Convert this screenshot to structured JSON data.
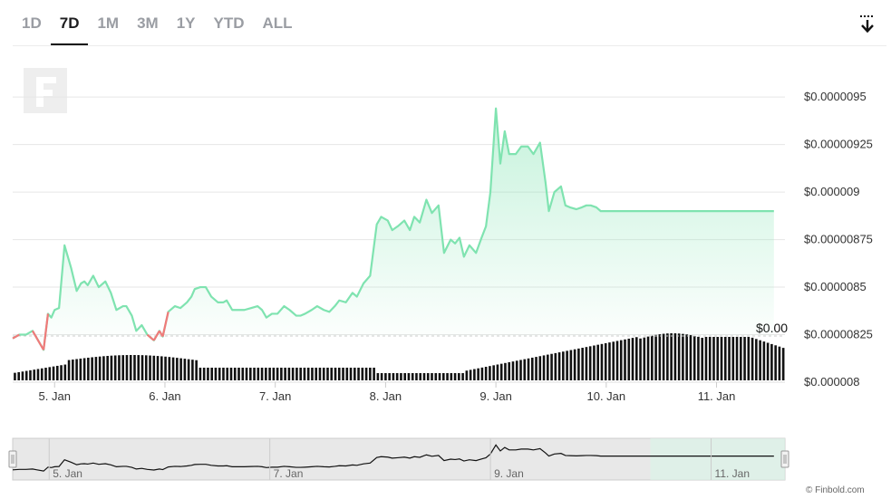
{
  "tabs": [
    "1D",
    "7D",
    "1M",
    "3M",
    "1Y",
    "YTD",
    "ALL"
  ],
  "active_tab": "7D",
  "credit": "© Finbold.com",
  "colors": {
    "line": "#7fe3b0",
    "below_baseline": "#f07a7a",
    "volume": "#111111",
    "grid": "#e6e6e6"
  },
  "icons": {
    "download": "download-icon",
    "watermark": "finbold-logo-icon"
  },
  "chart_data": {
    "type": "line",
    "x_labels": [
      "5. Jan",
      "6. Jan",
      "7. Jan",
      "8. Jan",
      "9. Jan",
      "10. Jan",
      "11. Jan"
    ],
    "y_ticks": [
      8e-06,
      8.25e-06,
      8.5e-06,
      8.75e-06,
      9e-06,
      9.25e-06,
      9.5e-06
    ],
    "y_tick_labels": [
      "$0.000008",
      "$0.00000825",
      "$0.0000085",
      "$0.00000875",
      "$0.000009",
      "$0.00000925",
      "$0.0000095"
    ],
    "ylim": [
      8e-06,
      9.5e-06
    ],
    "baseline_label": "$0.00",
    "series": [
      {
        "x": [
          4.62,
          4.68,
          4.74,
          4.8,
          4.84,
          4.9,
          4.94,
          4.97,
          5.0,
          5.04,
          5.09,
          5.15,
          5.2,
          5.24,
          5.27,
          5.3,
          5.35,
          5.4,
          5.46,
          5.51,
          5.56,
          5.62,
          5.65,
          5.7,
          5.74,
          5.79,
          5.84,
          5.9,
          5.95,
          5.98,
          6.03,
          6.09,
          6.14,
          6.2,
          6.24,
          6.27,
          6.32,
          6.37,
          6.42,
          6.48,
          6.53,
          6.56,
          6.61,
          6.67,
          6.72,
          6.78,
          6.84,
          6.88,
          6.92,
          6.97,
          7.02,
          7.08,
          7.13,
          7.19,
          7.23,
          7.27,
          7.33,
          7.38,
          7.44,
          7.49,
          7.54,
          7.58,
          7.64,
          7.7,
          7.74,
          7.8,
          7.86,
          7.92,
          7.96,
          8.02,
          8.06,
          8.11,
          8.17,
          8.22,
          8.26,
          8.31,
          8.37,
          8.42,
          8.48,
          8.53,
          8.59,
          8.63,
          8.67,
          8.71,
          8.76,
          8.82,
          8.87,
          8.91,
          8.95,
          9.0,
          9.04,
          9.08,
          9.12,
          9.18,
          9.23,
          9.29,
          9.34,
          9.4,
          9.45,
          9.48,
          9.53,
          9.59,
          9.63,
          9.67,
          9.73,
          9.78,
          9.82,
          9.86,
          9.91,
          9.95,
          9.99,
          10.04,
          10.1,
          10.15,
          10.19,
          10.25,
          10.29,
          10.34,
          10.38,
          10.42,
          10.46,
          10.5,
          10.55,
          10.6,
          10.64,
          10.69,
          10.74,
          10.79,
          10.84,
          10.9,
          10.95,
          11.01,
          11.06,
          11.11,
          11.15,
          11.19,
          11.24,
          11.29,
          11.33,
          11.38,
          11.41,
          11.46,
          11.52
        ],
        "values": [
          8.23e-06,
          8.25e-06,
          8.25e-06,
          8.27e-06,
          8.23e-06,
          8.17e-06,
          8.36e-06,
          8.34e-06,
          8.38e-06,
          8.39e-06,
          8.72e-06,
          8.6e-06,
          8.48e-06,
          8.52e-06,
          8.53e-06,
          8.51e-06,
          8.56e-06,
          8.5e-06,
          8.53e-06,
          8.47e-06,
          8.38e-06,
          8.4e-06,
          8.4e-06,
          8.35e-06,
          8.27e-06,
          8.3e-06,
          8.25e-06,
          8.22e-06,
          8.27e-06,
          8.24e-06,
          8.37e-06,
          8.4e-06,
          8.39e-06,
          8.42e-06,
          8.45e-06,
          8.49e-06,
          8.5e-06,
          8.5e-06,
          8.45e-06,
          8.42e-06,
          8.42e-06,
          8.43e-06,
          8.38e-06,
          8.38e-06,
          8.38e-06,
          8.39e-06,
          8.4e-06,
          8.38e-06,
          8.34e-06,
          8.36e-06,
          8.36e-06,
          8.4e-06,
          8.38e-06,
          8.35e-06,
          8.35e-06,
          8.36e-06,
          8.38e-06,
          8.4e-06,
          8.38e-06,
          8.37e-06,
          8.4e-06,
          8.43e-06,
          8.42e-06,
          8.47e-06,
          8.45e-06,
          8.52e-06,
          8.56e-06,
          8.83e-06,
          8.87e-06,
          8.85e-06,
          8.8e-06,
          8.82e-06,
          8.85e-06,
          8.8e-06,
          8.87e-06,
          8.84e-06,
          8.96e-06,
          8.89e-06,
          8.93e-06,
          8.68e-06,
          8.75e-06,
          8.73e-06,
          8.76e-06,
          8.66e-06,
          8.72e-06,
          8.68e-06,
          8.76e-06,
          8.82e-06,
          9e-06,
          9.44e-06,
          9.15e-06,
          9.32e-06,
          9.2e-06,
          9.2e-06,
          9.24e-06,
          9.24e-06,
          9.2e-06,
          9.26e-06,
          9.05e-06,
          8.9e-06,
          9e-06,
          9.03e-06,
          8.93e-06,
          8.92e-06,
          8.91e-06,
          8.92e-06,
          8.93e-06,
          8.93e-06,
          8.92e-06,
          8.9e-06,
          8.9e-06,
          8.9e-06,
          8.9e-06,
          8.9e-06,
          8.9e-06,
          8.9e-06,
          8.9e-06,
          8.9e-06,
          8.9e-06,
          8.9e-06,
          8.9e-06,
          8.9e-06,
          8.9e-06,
          8.9e-06,
          8.9e-06,
          8.9e-06,
          8.9e-06,
          8.9e-06,
          8.9e-06,
          8.9e-06,
          8.9e-06,
          8.9e-06,
          8.9e-06,
          8.9e-06,
          8.9e-06,
          8.9e-06,
          8.9e-06,
          8.9e-06,
          8.9e-06,
          8.9e-06,
          8.9e-06,
          8.9e-06,
          8.9e-06
        ]
      }
    ],
    "navigator_labels": [
      "5. Jan",
      "7. Jan",
      "9. Jan",
      "11. Jan"
    ]
  }
}
